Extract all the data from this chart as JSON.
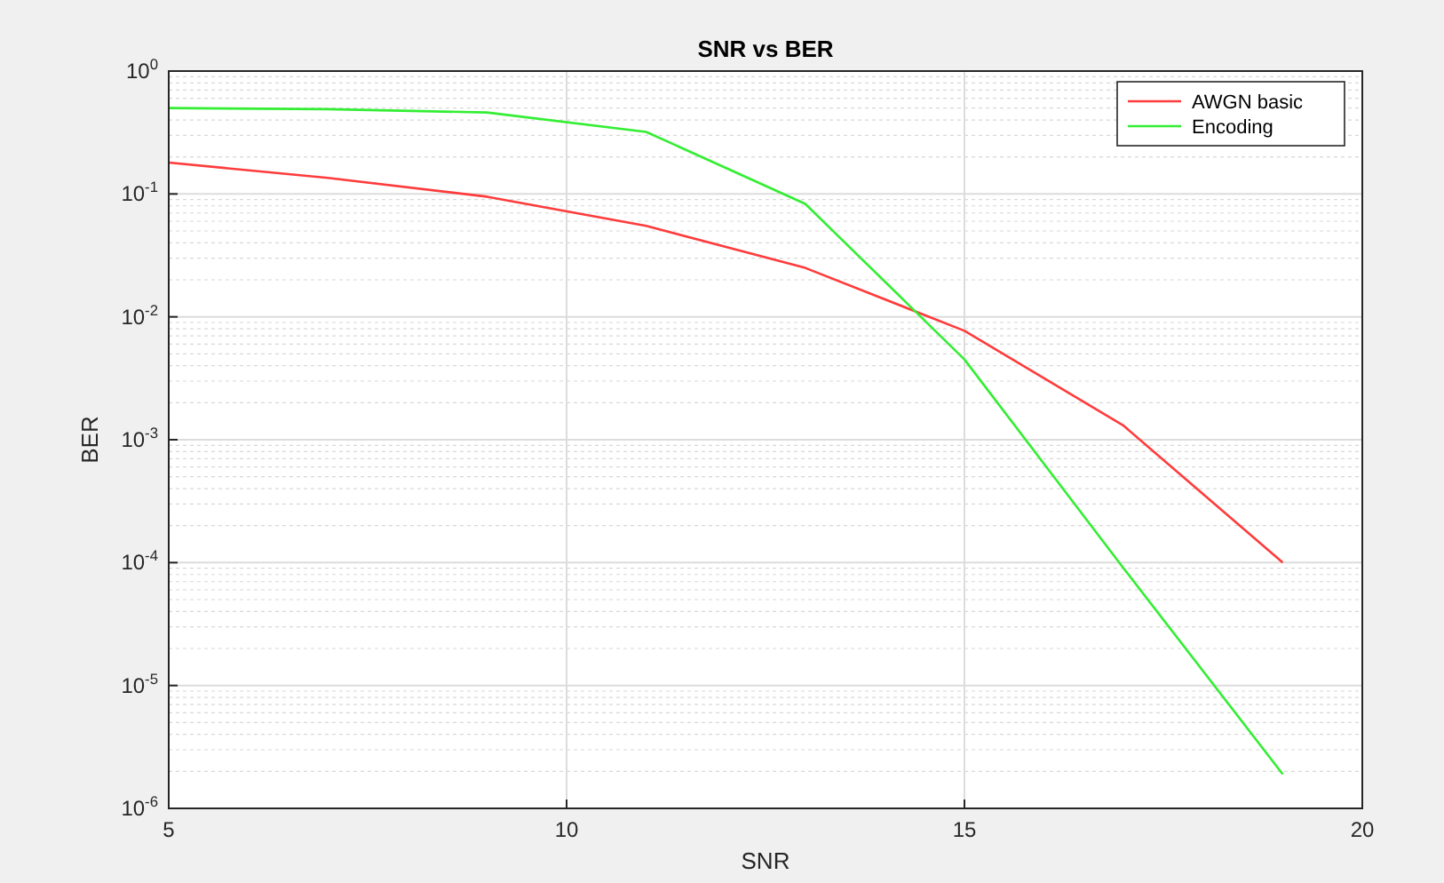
{
  "chart_data": {
    "type": "line",
    "title": "SNR vs BER",
    "xlabel": "SNR",
    "ylabel": "BER",
    "x": [
      5,
      7,
      9,
      11,
      13,
      15,
      17,
      19
    ],
    "series": [
      {
        "name": "AWGN basic",
        "color": "#ff3b3b",
        "values": [
          0.18,
          0.135,
          0.095,
          0.055,
          0.025,
          0.0077,
          0.0013,
          0.0001
        ]
      },
      {
        "name": "Encoding",
        "color": "#33ee33",
        "values": [
          0.5,
          0.49,
          0.46,
          0.32,
          0.083,
          0.0045,
          9e-05,
          1.9e-06
        ]
      }
    ],
    "xlim": [
      5,
      20
    ],
    "xticks": [
      5,
      10,
      15,
      20
    ],
    "ylim": [
      1e-06,
      1
    ],
    "yticks": [
      {
        "value": 1e-06,
        "label": "10$^{-6}$"
      },
      {
        "value": 1e-05,
        "label": "10$^{-5}$"
      },
      {
        "value": 0.0001,
        "label": "10$^{-4}$"
      },
      {
        "value": 0.001,
        "label": "10$^{-3}$"
      },
      {
        "value": 0.01,
        "label": "10$^{-2}$"
      },
      {
        "value": 0.1,
        "label": "10$^{-1}$"
      },
      {
        "value": 1,
        "label": "10$^{0}$"
      }
    ],
    "log": "y",
    "grid": true,
    "legend": "top right",
    "line_style": "solid",
    "marker": "none"
  }
}
